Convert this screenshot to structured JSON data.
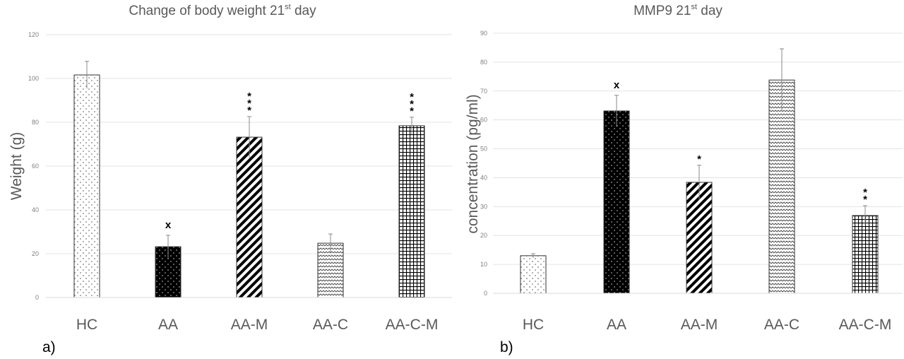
{
  "chart_data": [
    {
      "type": "bar",
      "panel_label": "a)",
      "title": "Change of body weight 21",
      "title_sup": "st",
      "title_end": " day",
      "xlabel": "",
      "ylabel": "Weight  (g)",
      "ylim": [
        0,
        120
      ],
      "yticks": [
        0,
        20,
        40,
        60,
        80,
        100,
        120
      ],
      "grid": true,
      "categories": [
        "HC",
        "AA",
        "AA-M",
        "AA-C",
        "AA-C-M"
      ],
      "values": [
        101.6,
        23.2,
        73.2,
        24.8,
        78.4
      ],
      "error": [
        6.2,
        5.2,
        9.4,
        4.2,
        3.9
      ],
      "annotations": [
        "",
        "x",
        "***",
        "",
        "***"
      ],
      "patterns": [
        "dots-light",
        "dots-on-black",
        "diagonal-stripes",
        "waves",
        "grid"
      ]
    },
    {
      "type": "bar",
      "panel_label": "b)",
      "title": "MMP9 21",
      "title_sup": "st",
      "title_end": " day",
      "xlabel": "",
      "ylabel": "concentration (pg/ml)",
      "ylim": [
        0,
        90
      ],
      "yticks": [
        0,
        10,
        20,
        30,
        40,
        50,
        60,
        70,
        80,
        90
      ],
      "grid": true,
      "categories": [
        "HC",
        "AA",
        "AA-M",
        "AA-C",
        "AA-C-M"
      ],
      "values": [
        13.0,
        63.1,
        38.4,
        73.8,
        26.9
      ],
      "error": [
        0.7,
        5.4,
        5.9,
        10.8,
        3.4
      ],
      "annotations": [
        "",
        "x",
        "*",
        "",
        "**"
      ],
      "patterns": [
        "dots-light",
        "dots-on-black",
        "diagonal-stripes",
        "waves",
        "grid"
      ]
    }
  ]
}
